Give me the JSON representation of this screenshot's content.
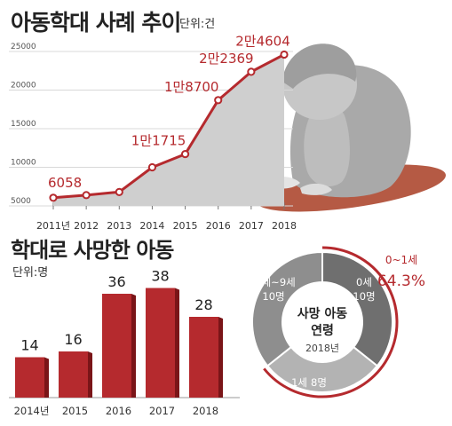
{
  "colors": {
    "accent": "#b52a2e",
    "accent_dark": "#7a1518",
    "area": "#cfcfcf",
    "donut_dark": "#6f6f6f",
    "donut_mid": "#8e8e8e",
    "donut_light": "#b3b3b3"
  },
  "chart_data": [
    {
      "type": "line",
      "title": "아동학대 사례 추이",
      "unit_label": "단위:건",
      "x": [
        "2011년",
        "2012",
        "2013",
        "2014",
        "2015",
        "2016",
        "2017",
        "2018"
      ],
      "y_ticks": [
        "25000",
        "20000",
        "15000",
        "10000",
        "5000"
      ],
      "ylim": [
        5000,
        25000
      ],
      "series": [
        {
          "values": [
            6058,
            6400,
            6800,
            10000,
            11715,
            18700,
            22369,
            24604
          ]
        }
      ],
      "data_labels": [
        {
          "index": 0,
          "text": "6058"
        },
        {
          "index": 4,
          "text": "1만1715"
        },
        {
          "index": 5,
          "text": "1만8700"
        },
        {
          "index": 6,
          "text": "2만2369"
        },
        {
          "index": 7,
          "text": "2만4604"
        }
      ]
    },
    {
      "type": "bar",
      "title": "학대로 사망한 아동",
      "unit_label": "단위:명",
      "categories": [
        "2014년",
        "2015",
        "2016",
        "2017",
        "2018"
      ],
      "values": [
        14,
        16,
        36,
        38,
        28
      ],
      "ylim": [
        0,
        40
      ]
    },
    {
      "type": "pie",
      "center_title": "사망 아동 연령",
      "center_year": "2018년",
      "slices": [
        {
          "label": "0세",
          "count_label": "10명",
          "value": 10
        },
        {
          "label": "1세",
          "count_label": "8명",
          "value": 8
        },
        {
          "label": "4세~9세",
          "count_label": "10명",
          "value": 10
        }
      ],
      "callout": {
        "label": "0~1세",
        "percent": "64.3%"
      }
    }
  ]
}
